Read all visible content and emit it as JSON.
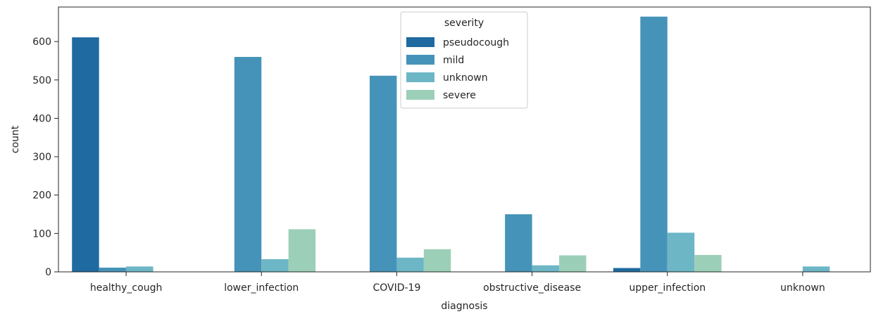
{
  "chart_data": {
    "type": "bar",
    "xlabel": "diagnosis",
    "ylabel": "count",
    "ylim": [
      0,
      690
    ],
    "yticks": [
      0,
      100,
      200,
      300,
      400,
      500,
      600
    ],
    "grid": false,
    "categories": [
      "healthy_cough",
      "lower_infection",
      "COVID-19",
      "obstructive_disease",
      "upper_infection",
      "unknown"
    ],
    "legend": {
      "title": "severity",
      "placement": "upper center"
    },
    "series": [
      {
        "name": "pseudocough",
        "color": "#1f6aa0",
        "values": [
          611,
          0,
          0,
          0,
          10,
          0
        ]
      },
      {
        "name": "mild",
        "color": "#4593b8",
        "values": [
          11,
          560,
          511,
          150,
          665,
          0
        ]
      },
      {
        "name": "unknown",
        "color": "#6db6c6",
        "values": [
          14,
          33,
          37,
          17,
          102,
          14
        ]
      },
      {
        "name": "severe",
        "color": "#9ccfb7",
        "values": [
          0,
          111,
          59,
          43,
          44,
          0
        ]
      }
    ]
  }
}
